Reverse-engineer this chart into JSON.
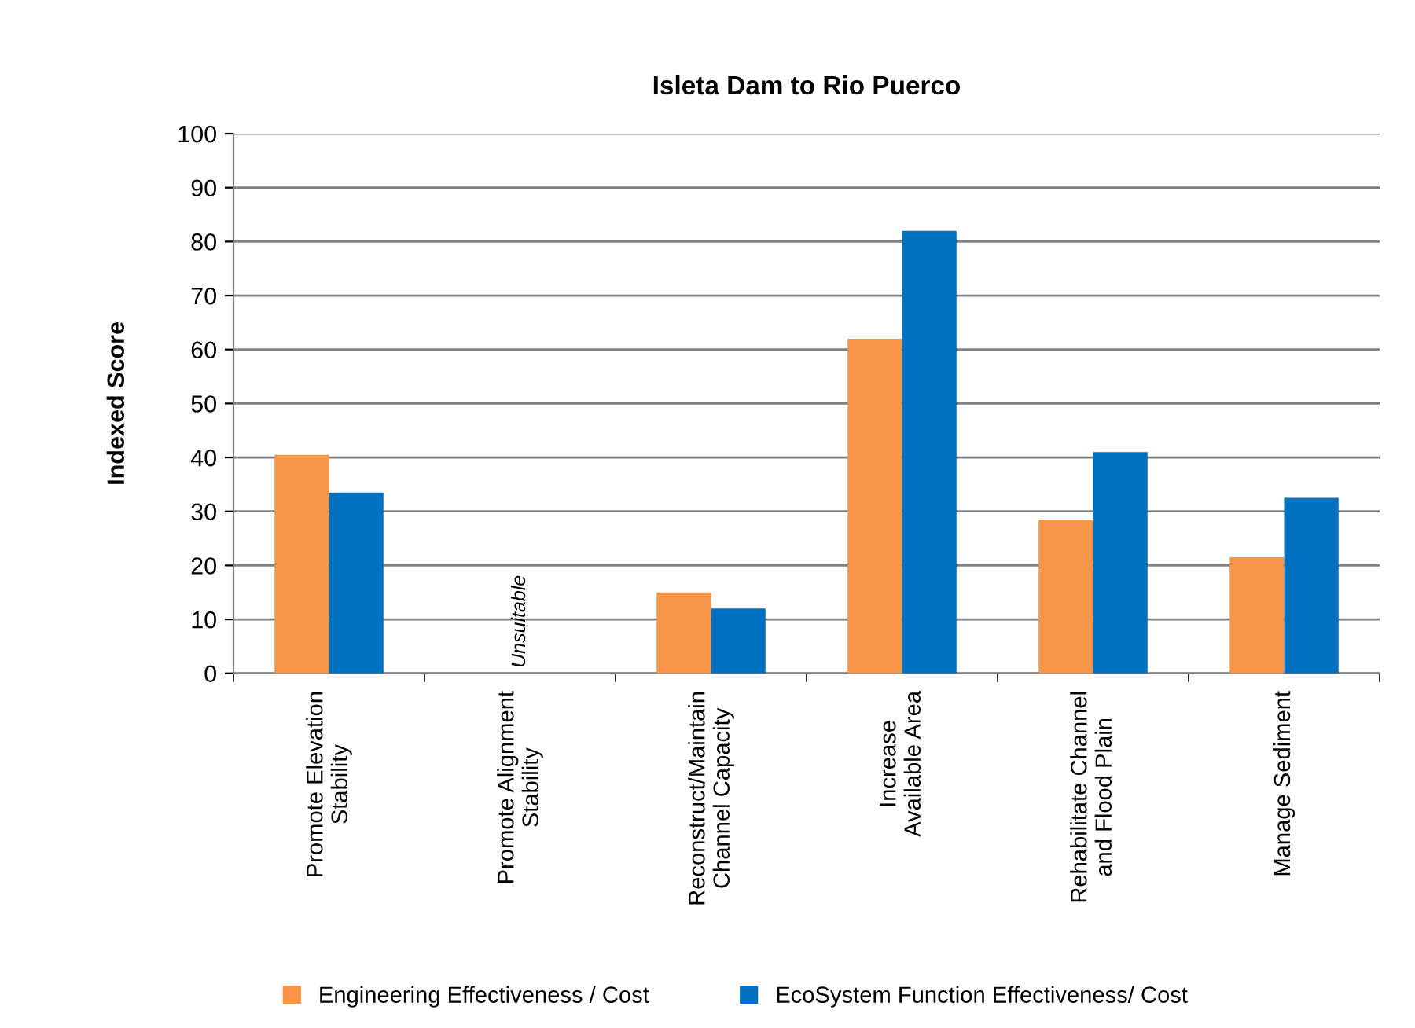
{
  "chart_data": {
    "type": "bar",
    "title": "Isleta Dam to Rio Puerco",
    "ylabel": "Indexed Score",
    "categories": [
      "Promote Elevation\nStability",
      "Promote Alignment\nStability",
      "Reconstruct/Maintain\nChannel Capacity",
      "Increase\nAvailable Area",
      "Rehabilitate Channel\nand Flood Plain",
      "Manage Sediment"
    ],
    "series": [
      {
        "name": "Engineering Effectiveness / Cost",
        "color": "#f79646",
        "values": [
          40.5,
          null,
          15,
          62,
          28.5,
          21.5
        ]
      },
      {
        "name": "EcoSystem Function Effectiveness/ Cost",
        "color": "#0070c0",
        "values": [
          33.5,
          null,
          12,
          82,
          41,
          32.5
        ]
      }
    ],
    "ylim": [
      0,
      100
    ],
    "yticks": [
      0,
      10,
      20,
      30,
      40,
      50,
      60,
      70,
      80,
      90,
      100
    ],
    "grid": "y",
    "legend": "bottom",
    "annotations": [
      "Unsuitable"
    ]
  }
}
